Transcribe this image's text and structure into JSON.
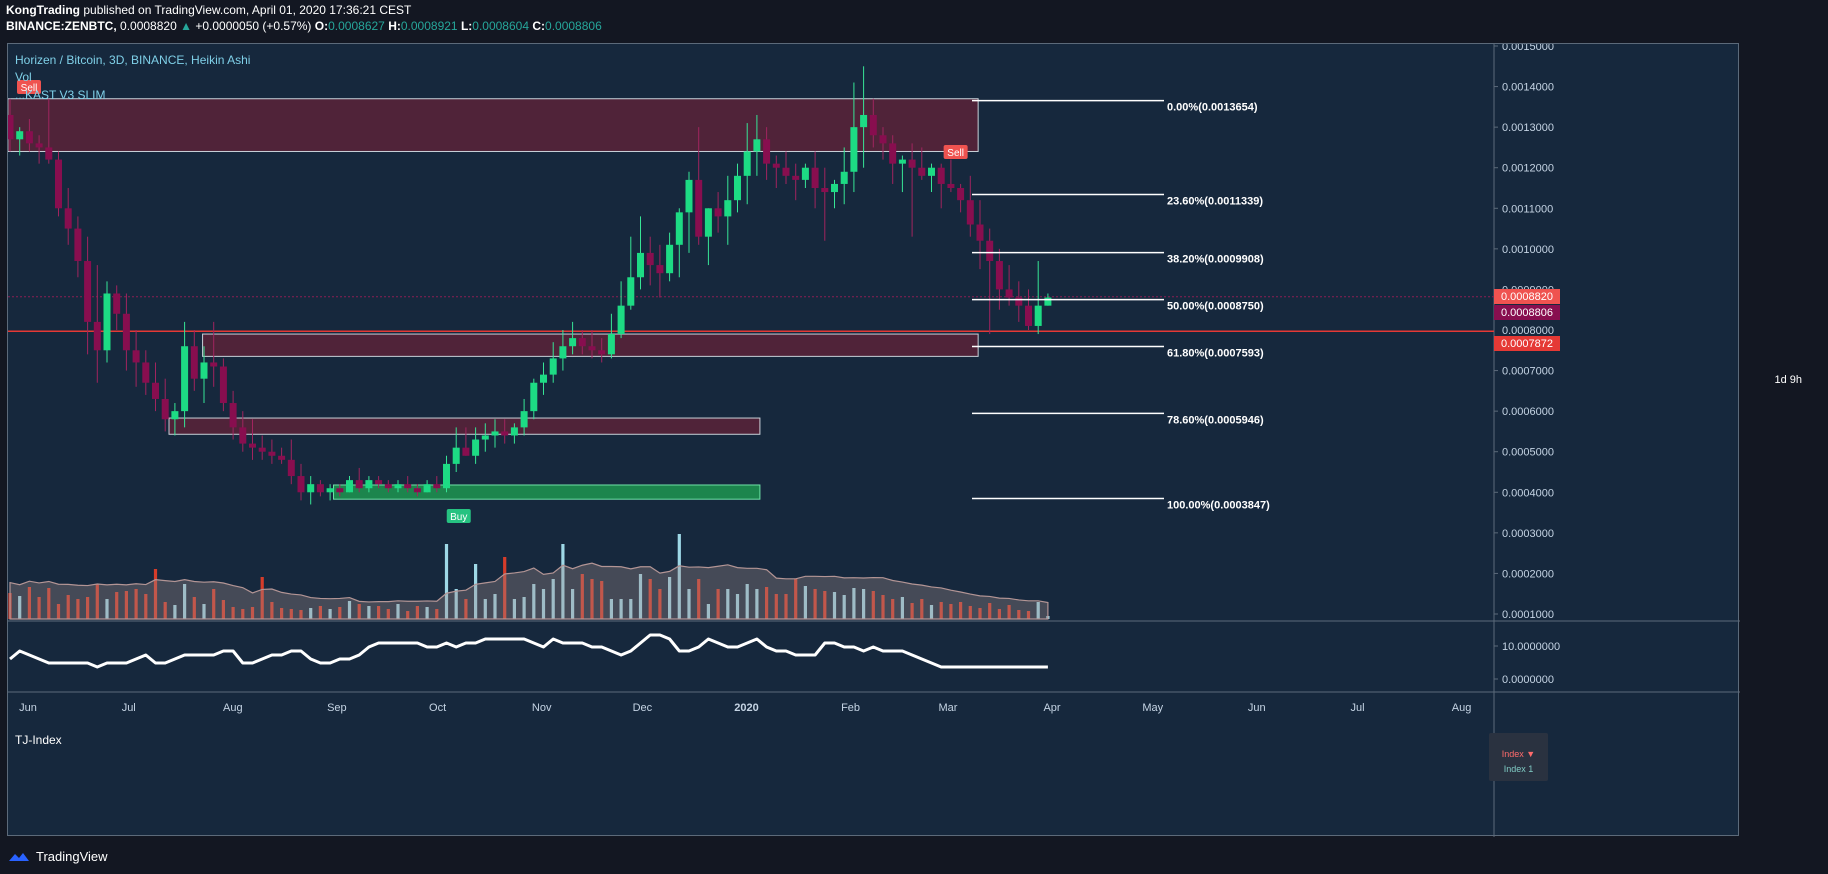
{
  "header": {
    "author": "KongTrading",
    "publish_text": "published on TradingView.com, April 01, 2020 17:36:21 CEST",
    "symbol": "BINANCE:ZENBTC,",
    "last": "0.0008820",
    "arrow": "▲",
    "change": "+0.0000050 (+0.57%)",
    "o_label": "O:",
    "o_val": "0.0008627",
    "h_label": "H:",
    "h_val": "0.0008921",
    "l_label": "L:",
    "l_val": "0.0008604",
    "c_label": "C:",
    "c_val": "0.0008806"
  },
  "pane": {
    "title": "Horizen / Bitcoin, 3D, BINANCE, Heikin Ashi",
    "vol_label": "Vol",
    "indicator_label": "...KAST V3 SLIM",
    "tj_label": "TJ-Index"
  },
  "index_box": {
    "line1": "Index ▼",
    "line2": "Index 1"
  },
  "footer": {
    "brand": "TradingView"
  },
  "countdown": "1d 9h",
  "colors": {
    "bull": "#1ddb84",
    "bear": "#880e4f",
    "bg": "#16283d",
    "fib": "#ffffff",
    "zone_red": "#5a2238",
    "zone_green": "#1d8f4f"
  },
  "chart_data": {
    "type": "candlestick",
    "title": "Horizen / Bitcoin, 3D, BINANCE, Heikin Ashi",
    "x_ticks": [
      "Jun",
      "Jul",
      "Aug",
      "Sep",
      "Oct",
      "Nov",
      "Dec",
      "2020",
      "Feb",
      "Mar",
      "Apr",
      "May",
      "Jun",
      "Jul",
      "Aug"
    ],
    "y_ticks": [
      "0.0015000",
      "0.0014000",
      "0.0013000",
      "0.0012000",
      "0.0011000",
      "0.0010000",
      "0.0007000",
      "0.0006000",
      "0.0005000",
      "0.0004000",
      "0.0003000",
      "0.0002000",
      "0.0001000"
    ],
    "ylim": [
      0.0001,
      0.0015
    ],
    "price_labels": [
      {
        "value": "0.0008820",
        "color": "#ef5350"
      },
      {
        "value": "0.0008806",
        "color": "#880e4f"
      },
      {
        "value": "0.0007872",
        "color": "#e53935"
      }
    ],
    "fib_levels": [
      {
        "label": "0.00%(0.0013654)",
        "value": 0.0013654
      },
      {
        "label": "23.60%(0.0011339)",
        "value": 0.0011339
      },
      {
        "label": "38.20%(0.0009908)",
        "value": 0.0009908
      },
      {
        "label": "50.00%(0.0008750)",
        "value": 0.000875
      },
      {
        "label": "61.80%(0.0007593)",
        "value": 0.0007593
      },
      {
        "label": "78.60%(0.0005946)",
        "value": 0.0005946
      },
      {
        "label": "100.00%(0.0003847)",
        "value": 0.0003847
      }
    ],
    "signals": [
      {
        "text": "Sell",
        "date": "2019-06-01"
      },
      {
        "text": "Sell",
        "date": "2020-03-03"
      },
      {
        "text": "Buy",
        "date": "2019-10-07"
      }
    ],
    "zones": [
      {
        "color": "red",
        "start": "2019-05-26",
        "end": "2020-03-10",
        "low": 0.00124,
        "high": 0.00137
      },
      {
        "color": "red",
        "start": "2019-07-23",
        "end": "2020-03-10",
        "low": 0.000735,
        "high": 0.00079
      },
      {
        "color": "red",
        "start": "2019-07-13",
        "end": "2020-01-05",
        "low": 0.000543,
        "high": 0.000583
      },
      {
        "color": "green",
        "start": "2019-08-31",
        "end": "2020-01-05",
        "low": 0.000383,
        "high": 0.000418
      }
    ],
    "candles": [
      [
        0.00133,
        0.00137,
        0.00124,
        0.00127
      ],
      [
        0.00127,
        0.0013,
        0.00123,
        0.00129
      ],
      [
        0.00129,
        0.00132,
        0.00124,
        0.00126
      ],
      [
        0.00126,
        0.00128,
        0.00121,
        0.00125
      ],
      [
        0.00125,
        0.00137,
        0.00121,
        0.00122
      ],
      [
        0.00122,
        0.00124,
        0.00108,
        0.0011
      ],
      [
        0.0011,
        0.00115,
        0.00101,
        0.00105
      ],
      [
        0.00105,
        0.00108,
        0.00093,
        0.00097
      ],
      [
        0.00097,
        0.00103,
        0.00074,
        0.00082
      ],
      [
        0.00082,
        0.00096,
        0.00067,
        0.00075
      ],
      [
        0.00075,
        0.00092,
        0.00072,
        0.00089
      ],
      [
        0.00089,
        0.00091,
        0.0008,
        0.00084
      ],
      [
        0.00084,
        0.00089,
        0.0007,
        0.00075
      ],
      [
        0.00075,
        0.0008,
        0.00066,
        0.00072
      ],
      [
        0.00072,
        0.00075,
        0.00064,
        0.00067
      ],
      [
        0.00067,
        0.00072,
        0.0006,
        0.00063
      ],
      [
        0.00063,
        0.00068,
        0.00055,
        0.00058
      ],
      [
        0.00058,
        0.00062,
        0.00054,
        0.0006
      ],
      [
        0.0006,
        0.00082,
        0.00056,
        0.00076
      ],
      [
        0.00076,
        0.0008,
        0.00065,
        0.00068
      ],
      [
        0.00068,
        0.00076,
        0.00062,
        0.00072
      ],
      [
        0.00072,
        0.00082,
        0.00066,
        0.00071
      ],
      [
        0.00071,
        0.00073,
        0.0006,
        0.00062
      ],
      [
        0.00062,
        0.00065,
        0.00053,
        0.00056
      ],
      [
        0.00056,
        0.0006,
        0.0005,
        0.00052
      ],
      [
        0.00052,
        0.00058,
        0.00048,
        0.00051
      ],
      [
        0.00051,
        0.00054,
        0.00048,
        0.0005
      ],
      [
        0.0005,
        0.00053,
        0.00047,
        0.00049
      ],
      [
        0.00049,
        0.00051,
        0.00047,
        0.00048
      ],
      [
        0.00048,
        0.00053,
        0.00042,
        0.00044
      ],
      [
        0.00044,
        0.00047,
        0.00038,
        0.0004
      ],
      [
        0.0004,
        0.00044,
        0.00037,
        0.00042
      ],
      [
        0.00042,
        0.00043,
        0.00039,
        0.0004
      ],
      [
        0.0004,
        0.00042,
        0.00038,
        0.00041
      ],
      [
        0.00041,
        0.00042,
        0.00039,
        0.0004
      ],
      [
        0.0004,
        0.00044,
        0.0004,
        0.00043
      ],
      [
        0.00043,
        0.00046,
        0.0004,
        0.00041
      ],
      [
        0.00041,
        0.00044,
        0.0004,
        0.00043
      ],
      [
        0.00043,
        0.00044,
        0.00041,
        0.00042
      ],
      [
        0.00042,
        0.00043,
        0.0004,
        0.00041
      ],
      [
        0.00041,
        0.00043,
        0.0004,
        0.00042
      ],
      [
        0.00042,
        0.00044,
        0.0004,
        0.00041
      ],
      [
        0.00041,
        0.00042,
        0.00039,
        0.0004
      ],
      [
        0.0004,
        0.00043,
        0.0004,
        0.00042
      ],
      [
        0.00042,
        0.00044,
        0.0004,
        0.00041
      ],
      [
        0.00041,
        0.00049,
        0.0004,
        0.00047
      ],
      [
        0.00047,
        0.00056,
        0.00045,
        0.00051
      ],
      [
        0.00051,
        0.00056,
        0.00049,
        0.00049
      ],
      [
        0.00049,
        0.00056,
        0.00047,
        0.00053
      ],
      [
        0.00053,
        0.00057,
        0.0005,
        0.00054
      ],
      [
        0.00054,
        0.00058,
        0.00051,
        0.00055
      ],
      [
        0.00055,
        0.00058,
        0.00052,
        0.00054
      ],
      [
        0.00054,
        0.00057,
        0.00052,
        0.00056
      ],
      [
        0.00056,
        0.00063,
        0.00054,
        0.0006
      ],
      [
        0.0006,
        0.00068,
        0.00058,
        0.00067
      ],
      [
        0.00067,
        0.00072,
        0.00064,
        0.00069
      ],
      [
        0.00069,
        0.00077,
        0.00067,
        0.00073
      ],
      [
        0.00073,
        0.0008,
        0.0007,
        0.00076
      ],
      [
        0.00076,
        0.00082,
        0.00074,
        0.00078
      ],
      [
        0.00078,
        0.0008,
        0.00074,
        0.00076
      ],
      [
        0.00076,
        0.0008,
        0.00073,
        0.00075
      ],
      [
        0.00075,
        0.00078,
        0.00072,
        0.00074
      ],
      [
        0.00074,
        0.00084,
        0.00073,
        0.00079
      ],
      [
        0.00079,
        0.00092,
        0.00078,
        0.00086
      ],
      [
        0.00086,
        0.00103,
        0.00085,
        0.00093
      ],
      [
        0.00093,
        0.00108,
        0.0009,
        0.00099
      ],
      [
        0.00099,
        0.00103,
        0.00091,
        0.00096
      ],
      [
        0.00096,
        0.00101,
        0.00088,
        0.00094
      ],
      [
        0.00094,
        0.00104,
        0.00092,
        0.00101
      ],
      [
        0.00101,
        0.0011,
        0.00093,
        0.00109
      ],
      [
        0.00109,
        0.00119,
        0.00099,
        0.00117
      ],
      [
        0.00117,
        0.0013,
        0.00101,
        0.00103
      ],
      [
        0.00103,
        0.0011,
        0.00096,
        0.0011
      ],
      [
        0.0011,
        0.00114,
        0.00104,
        0.00108
      ],
      [
        0.00108,
        0.00118,
        0.00101,
        0.00112
      ],
      [
        0.00112,
        0.00121,
        0.00109,
        0.00118
      ],
      [
        0.00118,
        0.00131,
        0.00111,
        0.00124
      ],
      [
        0.00124,
        0.00133,
        0.00118,
        0.00127
      ],
      [
        0.00127,
        0.0013,
        0.00117,
        0.00121
      ],
      [
        0.00121,
        0.00123,
        0.00115,
        0.0012
      ],
      [
        0.0012,
        0.00124,
        0.00116,
        0.00118
      ],
      [
        0.00118,
        0.00121,
        0.00112,
        0.00117
      ],
      [
        0.00117,
        0.00121,
        0.00115,
        0.0012
      ],
      [
        0.0012,
        0.00124,
        0.0011,
        0.00115
      ],
      [
        0.00115,
        0.0012,
        0.00102,
        0.00114
      ],
      [
        0.00114,
        0.00117,
        0.0011,
        0.00116
      ],
      [
        0.00116,
        0.00125,
        0.00111,
        0.00119
      ],
      [
        0.00119,
        0.00141,
        0.00114,
        0.0013
      ],
      [
        0.0013,
        0.00145,
        0.0012,
        0.00133
      ],
      [
        0.00133,
        0.00137,
        0.00125,
        0.00128
      ],
      [
        0.00128,
        0.0013,
        0.00122,
        0.00126
      ],
      [
        0.00126,
        0.00128,
        0.00116,
        0.00121
      ],
      [
        0.00121,
        0.00123,
        0.00114,
        0.00122
      ],
      [
        0.00122,
        0.00126,
        0.00103,
        0.0012
      ],
      [
        0.0012,
        0.00125,
        0.00117,
        0.00118
      ],
      [
        0.00118,
        0.00121,
        0.00114,
        0.0012
      ],
      [
        0.0012,
        0.00121,
        0.0011,
        0.00116
      ],
      [
        0.00116,
        0.00122,
        0.00114,
        0.00115
      ],
      [
        0.00115,
        0.00116,
        0.00109,
        0.00112
      ],
      [
        0.00112,
        0.00118,
        0.00103,
        0.00106
      ],
      [
        0.00106,
        0.00112,
        0.00095,
        0.00102
      ],
      [
        0.00102,
        0.00105,
        0.00079,
        0.00097
      ],
      [
        0.00097,
        0.001,
        0.00085,
        0.0009
      ],
      [
        0.0009,
        0.00096,
        0.00086,
        0.00088
      ],
      [
        0.00088,
        0.00092,
        0.00082,
        0.00086
      ],
      [
        0.00086,
        0.0009,
        0.0008,
        0.00081
      ],
      [
        0.00081,
        0.00097,
        0.00079,
        0.00086
      ],
      [
        0.00086,
        0.00089,
        0.00086,
        0.00088
      ]
    ],
    "volume": [
      0.26,
      0.23,
      0.32,
      0.22,
      0.31,
      0.15,
      0.24,
      0.2,
      0.22,
      0.35,
      0.2,
      0.27,
      0.28,
      0.3,
      0.25,
      0.5,
      0.17,
      0.14,
      0.35,
      0.22,
      0.15,
      0.3,
      0.19,
      0.12,
      0.1,
      0.12,
      0.42,
      0.17,
      0.11,
      0.1,
      0.09,
      0.11,
      0.13,
      0.1,
      0.12,
      0.18,
      0.15,
      0.13,
      0.13,
      0.1,
      0.15,
      0.08,
      0.13,
      0.12,
      0.1,
      0.75,
      0.3,
      0.2,
      0.55,
      0.2,
      0.25,
      0.62,
      0.2,
      0.22,
      0.35,
      0.3,
      0.4,
      0.75,
      0.3,
      0.45,
      0.4,
      0.38,
      0.2,
      0.2,
      0.2,
      0.45,
      0.4,
      0.3,
      0.42,
      0.85,
      0.3,
      0.4,
      0.15,
      0.3,
      0.3,
      0.25,
      0.35,
      0.3,
      0.32,
      0.25,
      0.25,
      0.4,
      0.33,
      0.3,
      0.28,
      0.27,
      0.24,
      0.31,
      0.3,
      0.28,
      0.24,
      0.2,
      0.22,
      0.16,
      0.2,
      0.14,
      0.17,
      0.15,
      0.17,
      0.13,
      0.11,
      0.16,
      0.1,
      0.14,
      0.09,
      0.08,
      0.17,
      0.03
    ],
    "tj_index": [
      8,
      10,
      9,
      8,
      7,
      7,
      7,
      7,
      7,
      6,
      7,
      7,
      7,
      8,
      9,
      7,
      7,
      8,
      9,
      9,
      9,
      9,
      10,
      10,
      7,
      7,
      8,
      9,
      9,
      10,
      10,
      8,
      7,
      7,
      8,
      8,
      9,
      11,
      12,
      12,
      12,
      12,
      12,
      11,
      11,
      12,
      11,
      12,
      12,
      13,
      13,
      13,
      13,
      13,
      12,
      11,
      13,
      12,
      12,
      12,
      11,
      11,
      10,
      9,
      10,
      12,
      14,
      14,
      13,
      10,
      10,
      11,
      13,
      12,
      11,
      11,
      12,
      13,
      11,
      10,
      10,
      9,
      9,
      9,
      12,
      12,
      11,
      11,
      10,
      11,
      10,
      10,
      10,
      9,
      8,
      7,
      6,
      6,
      6,
      6,
      6,
      6,
      6,
      6,
      6,
      6,
      6,
      6
    ]
  }
}
